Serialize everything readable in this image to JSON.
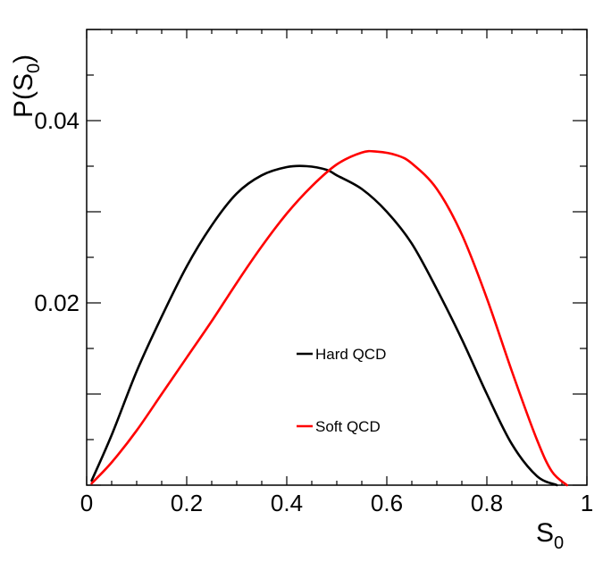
{
  "chart_data": {
    "type": "line",
    "title": "",
    "xlabel": {
      "main": "S",
      "sub": "0"
    },
    "ylabel": {
      "prefix": "P(S",
      "sub": "0",
      "suffix": ")"
    },
    "xlim": [
      0,
      1
    ],
    "ylim": [
      0,
      0.05
    ],
    "xticks": [
      {
        "value": 0,
        "label": "0"
      },
      {
        "value": 0.2,
        "label": "0.2"
      },
      {
        "value": 0.4,
        "label": "0.4"
      },
      {
        "value": 0.6,
        "label": "0.6"
      },
      {
        "value": 0.8,
        "label": "0.8"
      },
      {
        "value": 1,
        "label": "1"
      }
    ],
    "yticks": [
      {
        "value": 0.02,
        "label": "0.02"
      },
      {
        "value": 0.04,
        "label": "0.04"
      }
    ],
    "grid": false,
    "legend_position": "center-right",
    "series": [
      {
        "name": "Hard QCD",
        "color": "#000000",
        "x": [
          0.01,
          0.05,
          0.1,
          0.15,
          0.2,
          0.25,
          0.3,
          0.35,
          0.4,
          0.44,
          0.48,
          0.5,
          0.55,
          0.6,
          0.65,
          0.7,
          0.75,
          0.8,
          0.85,
          0.9,
          0.94
        ],
        "y": [
          0.0005,
          0.0055,
          0.0125,
          0.0185,
          0.024,
          0.0285,
          0.032,
          0.034,
          0.0349,
          0.035,
          0.0346,
          0.034,
          0.0325,
          0.03,
          0.0265,
          0.0215,
          0.016,
          0.01,
          0.0045,
          0.001,
          0.0
        ]
      },
      {
        "name": "Soft QCD",
        "color": "#ff0000",
        "x": [
          0.01,
          0.05,
          0.1,
          0.15,
          0.2,
          0.25,
          0.3,
          0.35,
          0.4,
          0.45,
          0.5,
          0.55,
          0.58,
          0.62,
          0.65,
          0.7,
          0.75,
          0.8,
          0.85,
          0.9,
          0.93,
          0.96
        ],
        "y": [
          0.0002,
          0.0025,
          0.006,
          0.01,
          0.014,
          0.018,
          0.0222,
          0.0262,
          0.0298,
          0.0328,
          0.0352,
          0.0365,
          0.0366,
          0.0362,
          0.0353,
          0.0325,
          0.0275,
          0.0205,
          0.0125,
          0.005,
          0.0015,
          0.0
        ]
      }
    ]
  }
}
